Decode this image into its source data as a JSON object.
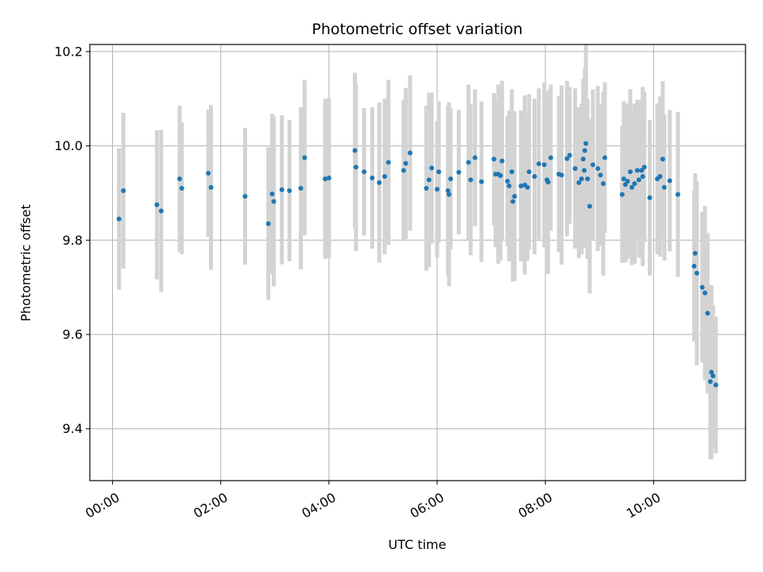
{
  "chart_data": {
    "type": "scatter",
    "title": "Photometric offset variation",
    "xlabel": "UTC time",
    "ylabel": "Photometric offset",
    "xlim_hours": [
      -0.42,
      11.7
    ],
    "ylim": [
      9.29,
      10.215
    ],
    "x_ticks": [
      {
        "hour": 0,
        "label": "00:00"
      },
      {
        "hour": 2,
        "label": "02:00"
      },
      {
        "hour": 4,
        "label": "04:00"
      },
      {
        "hour": 6,
        "label": "06:00"
      },
      {
        "hour": 8,
        "label": "08:00"
      },
      {
        "hour": 10,
        "label": "10:00"
      }
    ],
    "y_ticks": [
      {
        "value": 9.4,
        "label": "9.4"
      },
      {
        "value": 9.6,
        "label": "9.6"
      },
      {
        "value": 9.8,
        "label": "9.8"
      },
      {
        "value": 10.0,
        "label": "10.0"
      },
      {
        "value": 10.2,
        "label": "10.2"
      }
    ],
    "grid": true,
    "x_units": "hours after 00:00 UTC",
    "point_color": "#1f77b4",
    "errorbar_color": "#d3d3d3",
    "series": [
      {
        "name": "Photometric offset",
        "x": [
          0.12,
          0.2,
          0.82,
          0.9,
          1.24,
          1.28,
          1.77,
          1.82,
          2.45,
          2.88,
          2.95,
          2.98,
          3.13,
          3.27,
          3.48,
          3.55,
          3.93,
          4.0,
          4.48,
          4.5,
          4.65,
          4.8,
          4.93,
          5.03,
          5.1,
          5.38,
          5.42,
          5.5,
          5.8,
          5.85,
          5.9,
          6.0,
          6.03,
          6.2,
          6.22,
          6.25,
          6.4,
          6.58,
          6.62,
          6.7,
          6.82,
          7.05,
          7.08,
          7.13,
          7.17,
          7.2,
          7.3,
          7.33,
          7.38,
          7.4,
          7.43,
          7.55,
          7.62,
          7.67,
          7.7,
          7.8,
          7.88,
          7.98,
          8.03,
          8.05,
          8.1,
          8.25,
          8.3,
          8.4,
          8.45,
          8.55,
          8.62,
          8.67,
          8.7,
          8.72,
          8.73,
          8.75,
          8.78,
          8.82,
          8.88,
          8.97,
          9.02,
          9.07,
          9.1,
          9.42,
          9.45,
          9.48,
          9.52,
          9.57,
          9.6,
          9.65,
          9.7,
          9.73,
          9.78,
          9.8,
          9.83,
          9.93,
          10.07,
          10.12,
          10.17,
          10.2,
          10.3,
          10.45,
          10.75,
          10.77,
          10.8,
          10.9,
          10.95,
          11.0,
          11.05,
          11.07,
          11.1,
          11.15
        ],
        "y": [
          9.845,
          9.905,
          9.875,
          9.862,
          9.93,
          9.91,
          9.942,
          9.912,
          9.893,
          9.835,
          9.898,
          9.882,
          9.907,
          9.905,
          9.91,
          9.975,
          9.93,
          9.932,
          9.99,
          9.955,
          9.945,
          9.932,
          9.922,
          9.935,
          9.965,
          9.948,
          9.963,
          9.985,
          9.91,
          9.928,
          9.953,
          9.908,
          9.945,
          9.905,
          9.897,
          9.93,
          9.944,
          9.965,
          9.928,
          9.975,
          9.924,
          9.972,
          9.94,
          9.94,
          9.937,
          9.968,
          9.925,
          9.915,
          9.945,
          9.882,
          9.893,
          9.915,
          9.917,
          9.912,
          9.945,
          9.935,
          9.962,
          9.96,
          9.928,
          9.923,
          9.975,
          9.94,
          9.938,
          9.973,
          9.98,
          9.952,
          9.922,
          9.93,
          9.972,
          9.948,
          9.99,
          10.005,
          9.93,
          9.872,
          9.96,
          9.952,
          9.938,
          9.92,
          9.975,
          9.897,
          9.93,
          9.918,
          9.925,
          9.945,
          9.912,
          9.92,
          9.948,
          9.928,
          9.948,
          9.935,
          9.955,
          9.89,
          9.93,
          9.935,
          9.972,
          9.912,
          9.926,
          9.897,
          9.745,
          9.772,
          9.73,
          9.7,
          9.688,
          9.645,
          9.5,
          9.52,
          9.512,
          9.493
        ],
        "yerr": [
          0.15,
          0.165,
          0.158,
          0.172,
          0.155,
          0.14,
          0.135,
          0.175,
          0.145,
          0.162,
          0.17,
          0.18,
          0.158,
          0.15,
          0.172,
          0.165,
          0.17,
          0.17,
          0.165,
          0.178,
          0.135,
          0.15,
          0.17,
          0.165,
          0.175,
          0.15,
          0.16,
          0.165,
          0.175,
          0.185,
          0.16,
          0.145,
          0.15,
          0.18,
          0.195,
          0.15,
          0.132,
          0.165,
          0.16,
          0.145,
          0.17,
          0.14,
          0.155,
          0.19,
          0.18,
          0.17,
          0.138,
          0.16,
          0.175,
          0.17,
          0.18,
          0.16,
          0.19,
          0.155,
          0.165,
          0.165,
          0.16,
          0.175,
          0.19,
          0.195,
          0.155,
          0.165,
          0.19,
          0.165,
          0.145,
          0.17,
          0.16,
          0.16,
          0.17,
          0.165,
          0.175,
          0.21,
          0.17,
          0.185,
          0.16,
          0.175,
          0.15,
          0.195,
          0.16,
          0.145,
          0.165,
          0.165,
          0.165,
          0.175,
          0.165,
          0.17,
          0.15,
          0.165,
          0.15,
          0.19,
          0.16,
          0.165,
          0.16,
          0.17,
          0.165,
          0.155,
          0.15,
          0.175,
          0.16,
          0.17,
          0.195,
          0.16,
          0.185,
          0.17,
          0.165,
          0.185,
          0.15,
          0.145
        ]
      }
    ]
  }
}
